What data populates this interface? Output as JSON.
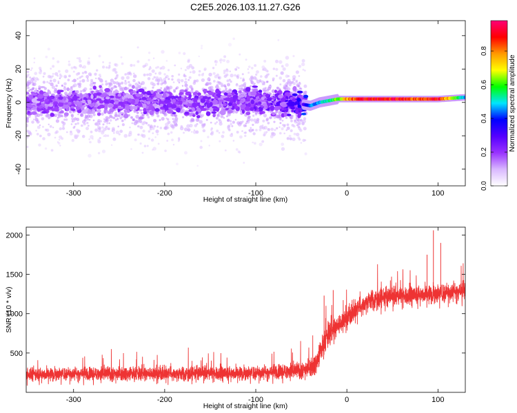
{
  "title": "C2E5.2026.103.11.27.G26",
  "chart_data": [
    {
      "type": "heatmap",
      "xlabel": "Height of straight line (km)",
      "ylabel": "Frequency (Hz)",
      "xlim": [
        -352,
        130
      ],
      "ylim": [
        -50,
        49
      ],
      "xticks": [
        -300,
        -200,
        -100,
        0,
        100
      ],
      "xtick_labels": [
        "-300",
        "-200",
        "-100",
        "0",
        "100"
      ],
      "yticks": [
        -40,
        -20,
        0,
        20,
        40
      ],
      "ytick_labels": [
        "-40",
        "-20",
        "0",
        "20",
        "40"
      ],
      "colorbar": {
        "label": "Normalized spectral amplitude",
        "range": [
          0,
          0.98
        ],
        "ticks": [
          0,
          0.2,
          0.4,
          0.6,
          0.8
        ],
        "tick_labels": [
          "0.0",
          "0.2",
          "0.4",
          "0.6",
          "0.8"
        ],
        "colors": [
          "#ffffff",
          "#d9b8ff",
          "#9933ff",
          "#5500ff",
          "#0000ff",
          "#00e5ff",
          "#00ff00",
          "#ffff00",
          "#ff9900",
          "#ff0000",
          "#ff0077"
        ]
      },
      "ridge": {
        "x": [
          -350,
          -300,
          -250,
          -200,
          -150,
          -100,
          -50,
          -40,
          -30,
          -20,
          -10,
          0,
          20,
          50,
          80,
          100,
          128
        ],
        "frequency": [
          0,
          0,
          1,
          0,
          0,
          1,
          -1,
          -2,
          0,
          1,
          2,
          2,
          2,
          2,
          2,
          2,
          3
        ],
        "amplitude": [
          0.15,
          0.16,
          0.16,
          0.17,
          0.17,
          0.18,
          0.25,
          0.45,
          0.5,
          0.55,
          0.65,
          0.8,
          0.95,
          0.95,
          0.85,
          0.95,
          0.5
        ]
      },
      "noise_extent_x": [
        -352,
        -45
      ]
    },
    {
      "type": "line",
      "xlabel": "Height of straight line (km)",
      "ylabel": "SNR (10 * v/v)",
      "xlim": [
        -352,
        130
      ],
      "ylim": [
        0,
        2100
      ],
      "xticks": [
        -300,
        -200,
        -100,
        0,
        100
      ],
      "xtick_labels": [
        "-300",
        "-200",
        "-100",
        "0",
        "100"
      ],
      "yticks": [
        500,
        1000,
        1500,
        2000
      ],
      "ytick_labels": [
        "500",
        "1000",
        "1500",
        "2000"
      ],
      "color": "#ee3333",
      "envelope": {
        "x": [
          -352,
          -300,
          -200,
          -100,
          -50,
          -35,
          -28,
          -20,
          -10,
          0,
          10,
          25,
          50,
          80,
          100,
          130
        ],
        "low": [
          80,
          90,
          90,
          100,
          120,
          150,
          250,
          400,
          600,
          750,
          850,
          950,
          1000,
          1050,
          1050,
          1100
        ],
        "mean": [
          230,
          240,
          240,
          250,
          280,
          350,
          550,
          750,
          850,
          950,
          1050,
          1180,
          1220,
          1250,
          1260,
          1300
        ],
        "high": [
          450,
          460,
          470,
          500,
          550,
          700,
          900,
          1100,
          1200,
          1300,
          1400,
          1500,
          1520,
          1550,
          1600,
          1650
        ]
      }
    }
  ]
}
